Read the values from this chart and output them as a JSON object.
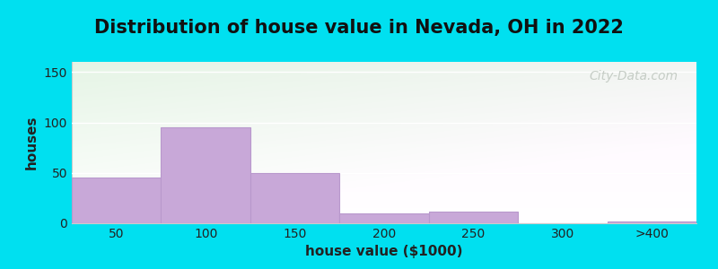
{
  "title": "Distribution of house value in Nevada, OH in 2022",
  "xlabel": "house value ($1000)",
  "ylabel": "houses",
  "bar_labels": [
    "50",
    "100",
    "150",
    "200",
    "250",
    "300",
    ">400"
  ],
  "bar_heights": [
    45,
    95,
    50,
    10,
    12,
    0,
    2
  ],
  "bar_color": "#c8a8d8",
  "bar_edge_color": "#b898cc",
  "yticks": [
    0,
    50,
    100,
    150
  ],
  "ylim": [
    0,
    160
  ],
  "bg_outer": "#00e0f0",
  "bg_top_color": "#ddeedd",
  "bg_bottom_color": "#f0fef0",
  "grid_color": "#ffffff",
  "title_fontsize": 15,
  "axis_label_fontsize": 11,
  "tick_fontsize": 10,
  "watermark": "City-Data.com"
}
